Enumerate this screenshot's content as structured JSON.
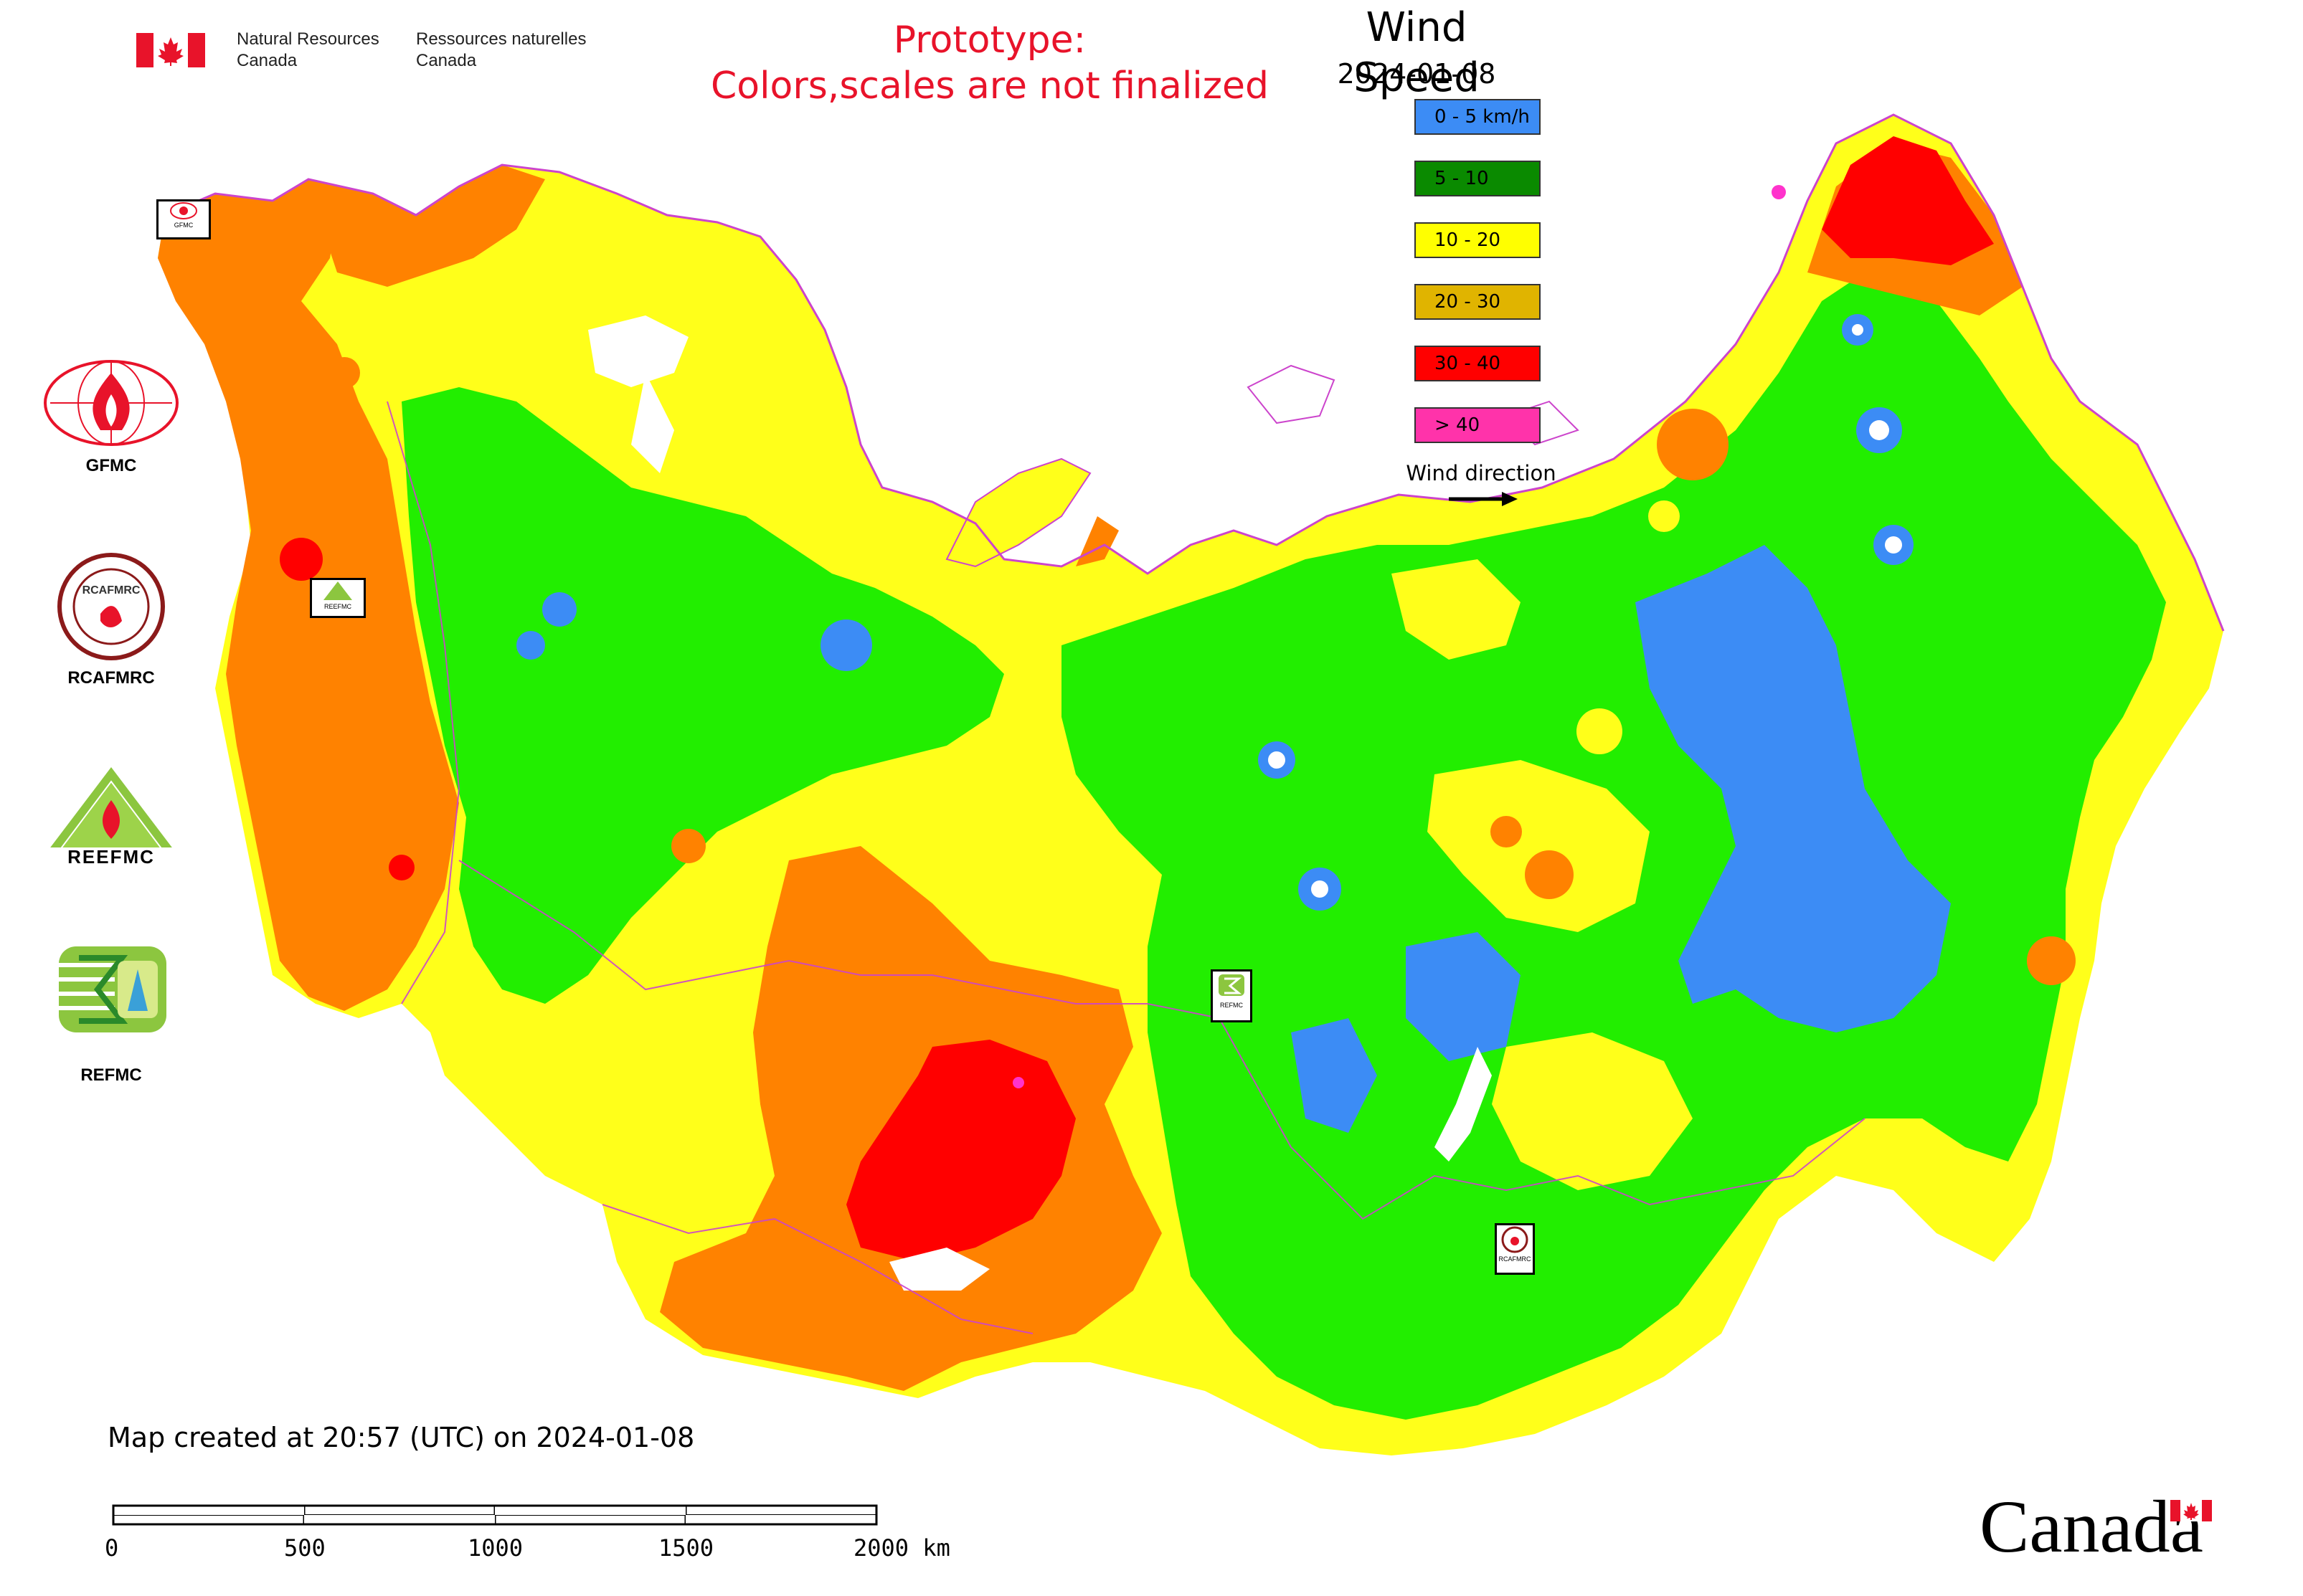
{
  "header": {
    "nrcan_en": [
      "Natural Resources",
      "Canada"
    ],
    "nrcan_fr": [
      "Ressources naturelles",
      "Canada"
    ],
    "prototype_line1": "Prototype:",
    "prototype_line2": "Colors,scales are not finalized"
  },
  "legend": {
    "title": "Wind Speed",
    "date": "2024-01-08",
    "items": [
      {
        "label": "0 - 5 km/h",
        "color": "#3c8cf5"
      },
      {
        "label": "5 - 10",
        "color": "#0a8a00"
      },
      {
        "label": "10 - 20",
        "color": "#ffff00"
      },
      {
        "label": "20 - 30",
        "color": "#e0b400"
      },
      {
        "label": "30 - 40",
        "color": "#ff0000"
      },
      {
        "label": "> 40",
        "color": "#ff33aa"
      }
    ],
    "wind_direction_label": "Wind direction"
  },
  "map_colors": {
    "calm": "#3c8cf5",
    "light": "#22ee00",
    "moderate": "#ffff1a",
    "fresh": "#ff8200",
    "strong": "#ff0000",
    "gale": "#ff33cc",
    "border": "#cc44cc"
  },
  "side_logos": [
    {
      "name": "GFMC",
      "label": "GFMC"
    },
    {
      "name": "RCAFMRC",
      "label": "RCAFMRC",
      "logo_text": "RCAFMRC"
    },
    {
      "name": "REEFMC",
      "label": "",
      "logo_text": "REEFMC"
    },
    {
      "name": "REFMC",
      "label": "REFMC"
    }
  ],
  "map_markers": [
    {
      "label": "GFMC"
    },
    {
      "label": "REEFMC"
    },
    {
      "label": "REFMC"
    },
    {
      "label": "RCAFMRC"
    }
  ],
  "footer": {
    "created": "Map created at 20:57 (UTC) on 2024-01-08",
    "scale_labels": [
      "0",
      "500",
      "1000",
      "1500",
      "2000 km"
    ],
    "wordmark": "Canada"
  }
}
